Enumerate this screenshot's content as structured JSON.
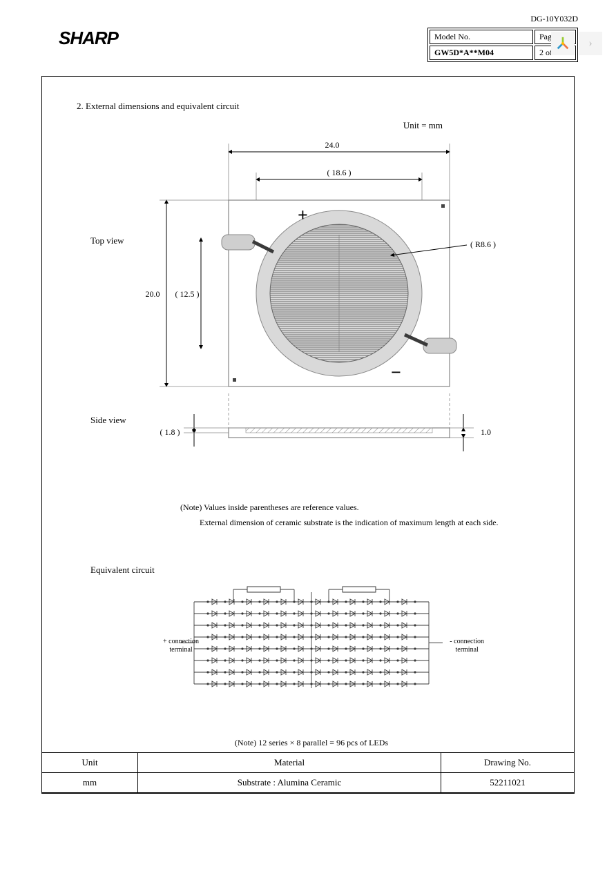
{
  "doc_code": "DG-10Y032D",
  "brand": "SHARP",
  "header": {
    "model_label": "Model No.",
    "page_label": "Page",
    "model": "GW5D*A**M04",
    "page": "2 of 18"
  },
  "section_title": "2. External dimensions and equivalent circuit",
  "unit_text": "Unit = mm",
  "drawing": {
    "top_view_label": "Top view",
    "side_view_label": "Side view",
    "dim_width": "24.0",
    "dim_ring": "( 18.6 )",
    "dim_height": "20.0",
    "dim_led": "( 12.5 )",
    "radius": "( R8.6 )",
    "side_ref": "( 1.8 )",
    "side_thick": "1.0",
    "plus": "+",
    "minus": "−",
    "outline_color": "#6c6c6c",
    "ring_fill": "#d9d9d9",
    "led_fill": "#8a8a8a",
    "pad_fill": "#cfcfcf",
    "hatch_color": "#808080"
  },
  "notes": {
    "n1": "(Note) Values inside parentheses are reference values.",
    "n2": "External dimension of ceramic substrate is the indication of maximum length at each side."
  },
  "equivalent": {
    "title": "Equivalent circuit",
    "plus_label": "+ connection\nterminal",
    "minus_label": "- connection\nterminal",
    "series_note": "(Note) 12  series ×          8  parallel =         96      pcs of LEDs",
    "series": 12,
    "parallel": 8,
    "line_color": "#3a3a3a"
  },
  "footer": {
    "h1": "Unit",
    "h2": "Material",
    "h3": "Drawing No.",
    "v1": "mm",
    "v2": "Substrate : Alumina Ceramic",
    "v3": "52211021"
  },
  "pager": {
    "next": "›"
  }
}
